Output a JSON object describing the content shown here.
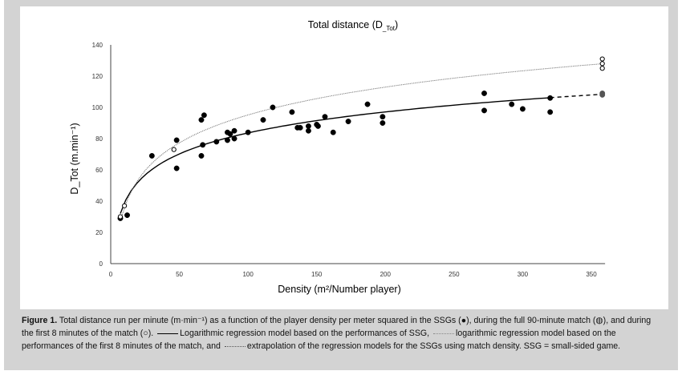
{
  "chart_data": {
    "type": "scatter",
    "title": "Total distance (D_Tot)",
    "title_main": "Total distance (D",
    "title_sub": "_Tot",
    "xlabel": "Density (m²/Number player)",
    "ylabel": "D_Tot (m.min⁻¹)",
    "xlim": [
      0,
      360
    ],
    "ylim": [
      0,
      140
    ],
    "xticks": [
      0,
      50,
      100,
      150,
      200,
      250,
      300,
      350
    ],
    "yticks": [
      0,
      20,
      40,
      60,
      80,
      100,
      120,
      140
    ],
    "grid": false,
    "series": [
      {
        "marker": "filled-circle",
        "color": "#000000",
        "points": [
          [
            7,
            29
          ],
          [
            12,
            31
          ],
          [
            30,
            69
          ],
          [
            48,
            79
          ],
          [
            48,
            61
          ],
          [
            66,
            92
          ],
          [
            68,
            95
          ],
          [
            67,
            76
          ],
          [
            66,
            69
          ],
          [
            77,
            78
          ],
          [
            85,
            84
          ],
          [
            85,
            79
          ],
          [
            87,
            83
          ],
          [
            90,
            85
          ],
          [
            90,
            80
          ],
          [
            100,
            84
          ],
          [
            111,
            92
          ],
          [
            118,
            100
          ],
          [
            132,
            97
          ],
          [
            136,
            87
          ],
          [
            138,
            87
          ],
          [
            144,
            88
          ],
          [
            144,
            85
          ],
          [
            150,
            89
          ],
          [
            151,
            88
          ],
          [
            156,
            94
          ],
          [
            162,
            84
          ],
          [
            173,
            91
          ],
          [
            187,
            102
          ],
          [
            198,
            94
          ],
          [
            198,
            90
          ],
          [
            272,
            109
          ],
          [
            272,
            98
          ],
          [
            292,
            102
          ],
          [
            300,
            99
          ],
          [
            320,
            106
          ],
          [
            320,
            97
          ]
        ]
      },
      {
        "marker": "grey-filled-circle",
        "color": "#555555",
        "points": [
          [
            358,
            109
          ],
          [
            358,
            108
          ]
        ]
      },
      {
        "marker": "open-circle",
        "color": "#000000",
        "points": [
          [
            7,
            30
          ],
          [
            10,
            37
          ],
          [
            46,
            73
          ],
          [
            358,
            131
          ],
          [
            358,
            128
          ],
          [
            358,
            125
          ]
        ]
      }
    ],
    "fits": [
      {
        "style": "solid",
        "model": "log",
        "a": 19.4,
        "b": -5.7,
        "x_range": [
          7,
          320
        ],
        "color": "#000000"
      },
      {
        "style": "dotted",
        "model": "log",
        "a": 25.7,
        "b": -23.2,
        "x_range": [
          8,
          358
        ],
        "color": "#777777"
      },
      {
        "style": "dashed",
        "model": "log",
        "a": 19.4,
        "b": -5.7,
        "x_range": [
          320,
          358
        ],
        "color": "#000000"
      }
    ]
  },
  "caption": {
    "label": "Figure 1.",
    "part1": "Total distance run per minute (m·min⁻¹) as a function of the player density per meter squared in the SSGs (●), during the full 90-minute match (◍), and during the first 8 minutes of the match (○).",
    "part2": "Logarithmic regression model based on the performances of SSG,",
    "part3": "logarithmic regression model based on the performances of the first 8 minutes of the match, and",
    "part4": "extrapolation of the regression models for the SSGs using match density. SSG = small-sided game."
  }
}
